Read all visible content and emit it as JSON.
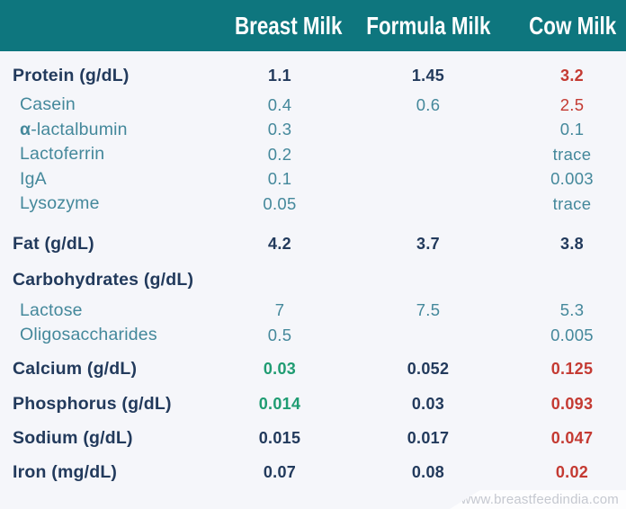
{
  "colors": {
    "header_bg": "#0e767e",
    "header_text": "#ffffff",
    "main_text": "#223a5c",
    "sub_text": "#44889b",
    "high_red": "#c43a32",
    "low_green": "#1f9c72",
    "page_bg": "#f5f6fa",
    "footer_bg": "#fdfdfe",
    "footer_text": "#c5c8d0"
  },
  "footer": {
    "url": "www.breastfeedindia.com"
  },
  "chart_data": {
    "type": "table",
    "columns": [
      "Breast Milk",
      "Formula Milk",
      "Cow Milk"
    ],
    "rows": [
      {
        "label": "Protein (g/dL)",
        "group": "main",
        "values": [
          "1.1",
          "1.45",
          "3.2"
        ]
      },
      {
        "label": "Casein",
        "group": "sub",
        "values": [
          "0.4",
          "0.6",
          "2.5"
        ]
      },
      {
        "label": "α-lactalbumin",
        "label_prefix": "α",
        "label_rest": "-lactalbumin",
        "group": "sub",
        "values": [
          "0.3",
          "",
          "0.1"
        ]
      },
      {
        "label": "Lactoferrin",
        "group": "sub",
        "values": [
          "0.2",
          "",
          "trace"
        ]
      },
      {
        "label": "IgA",
        "group": "sub",
        "values": [
          "0.1",
          "",
          "0.003"
        ]
      },
      {
        "label": "Lysozyme",
        "group": "sub",
        "values": [
          "0.05",
          "",
          "trace"
        ]
      },
      {
        "label": "Fat (g/dL)",
        "group": "main",
        "values": [
          "4.2",
          "3.7",
          "3.8"
        ]
      },
      {
        "label": "Carbohydrates (g/dL)",
        "group": "main",
        "values": [
          "",
          "",
          ""
        ]
      },
      {
        "label": "Lactose",
        "group": "sub",
        "values": [
          "7",
          "7.5",
          "5.3"
        ]
      },
      {
        "label": "Oligosaccharides",
        "group": "sub",
        "values": [
          "0.5",
          "",
          "0.005"
        ]
      },
      {
        "label": "Calcium (g/dL)",
        "group": "main",
        "values": [
          "0.03",
          "0.052",
          "0.125"
        ]
      },
      {
        "label": "Phosphorus (g/dL)",
        "group": "main",
        "values": [
          "0.014",
          "0.03",
          "0.093"
        ]
      },
      {
        "label": "Sodium (g/dL)",
        "group": "main",
        "values": [
          "0.015",
          "0.017",
          "0.047"
        ]
      },
      {
        "label": "Iron (mg/dL)",
        "group": "main",
        "values": [
          "0.07",
          "0.08",
          "0.02"
        ]
      }
    ]
  }
}
